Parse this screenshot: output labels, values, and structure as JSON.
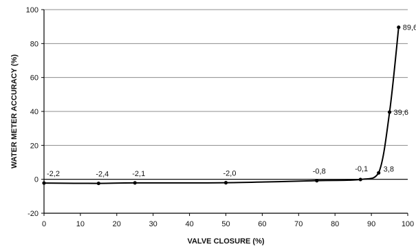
{
  "chart_data": {
    "type": "line",
    "title": "",
    "xlabel": "VALVE CLOSURE (%)",
    "ylabel": "WATER METER ACCURACY (%)",
    "xlim": [
      0,
      100
    ],
    "ylim": [
      -20,
      100
    ],
    "xticks": [
      0,
      10,
      20,
      30,
      40,
      50,
      60,
      70,
      80,
      90,
      100
    ],
    "yticks": [
      -20,
      0,
      20,
      40,
      60,
      80,
      100
    ],
    "grid": "horizontal",
    "legend": "none",
    "series": [
      {
        "x": [
          0,
          15,
          25,
          50,
          75,
          87,
          92,
          95,
          97.5
        ],
        "y": [
          -2.2,
          -2.4,
          -2.1,
          -2.0,
          -0.8,
          -0.1,
          3.8,
          39.6,
          89.6
        ],
        "labels": [
          "-2,2",
          "-2,4",
          "-2,1",
          "-2,0",
          "-0,8",
          "-0,1",
          "3,8",
          "39,6",
          "89,6"
        ]
      }
    ]
  }
}
